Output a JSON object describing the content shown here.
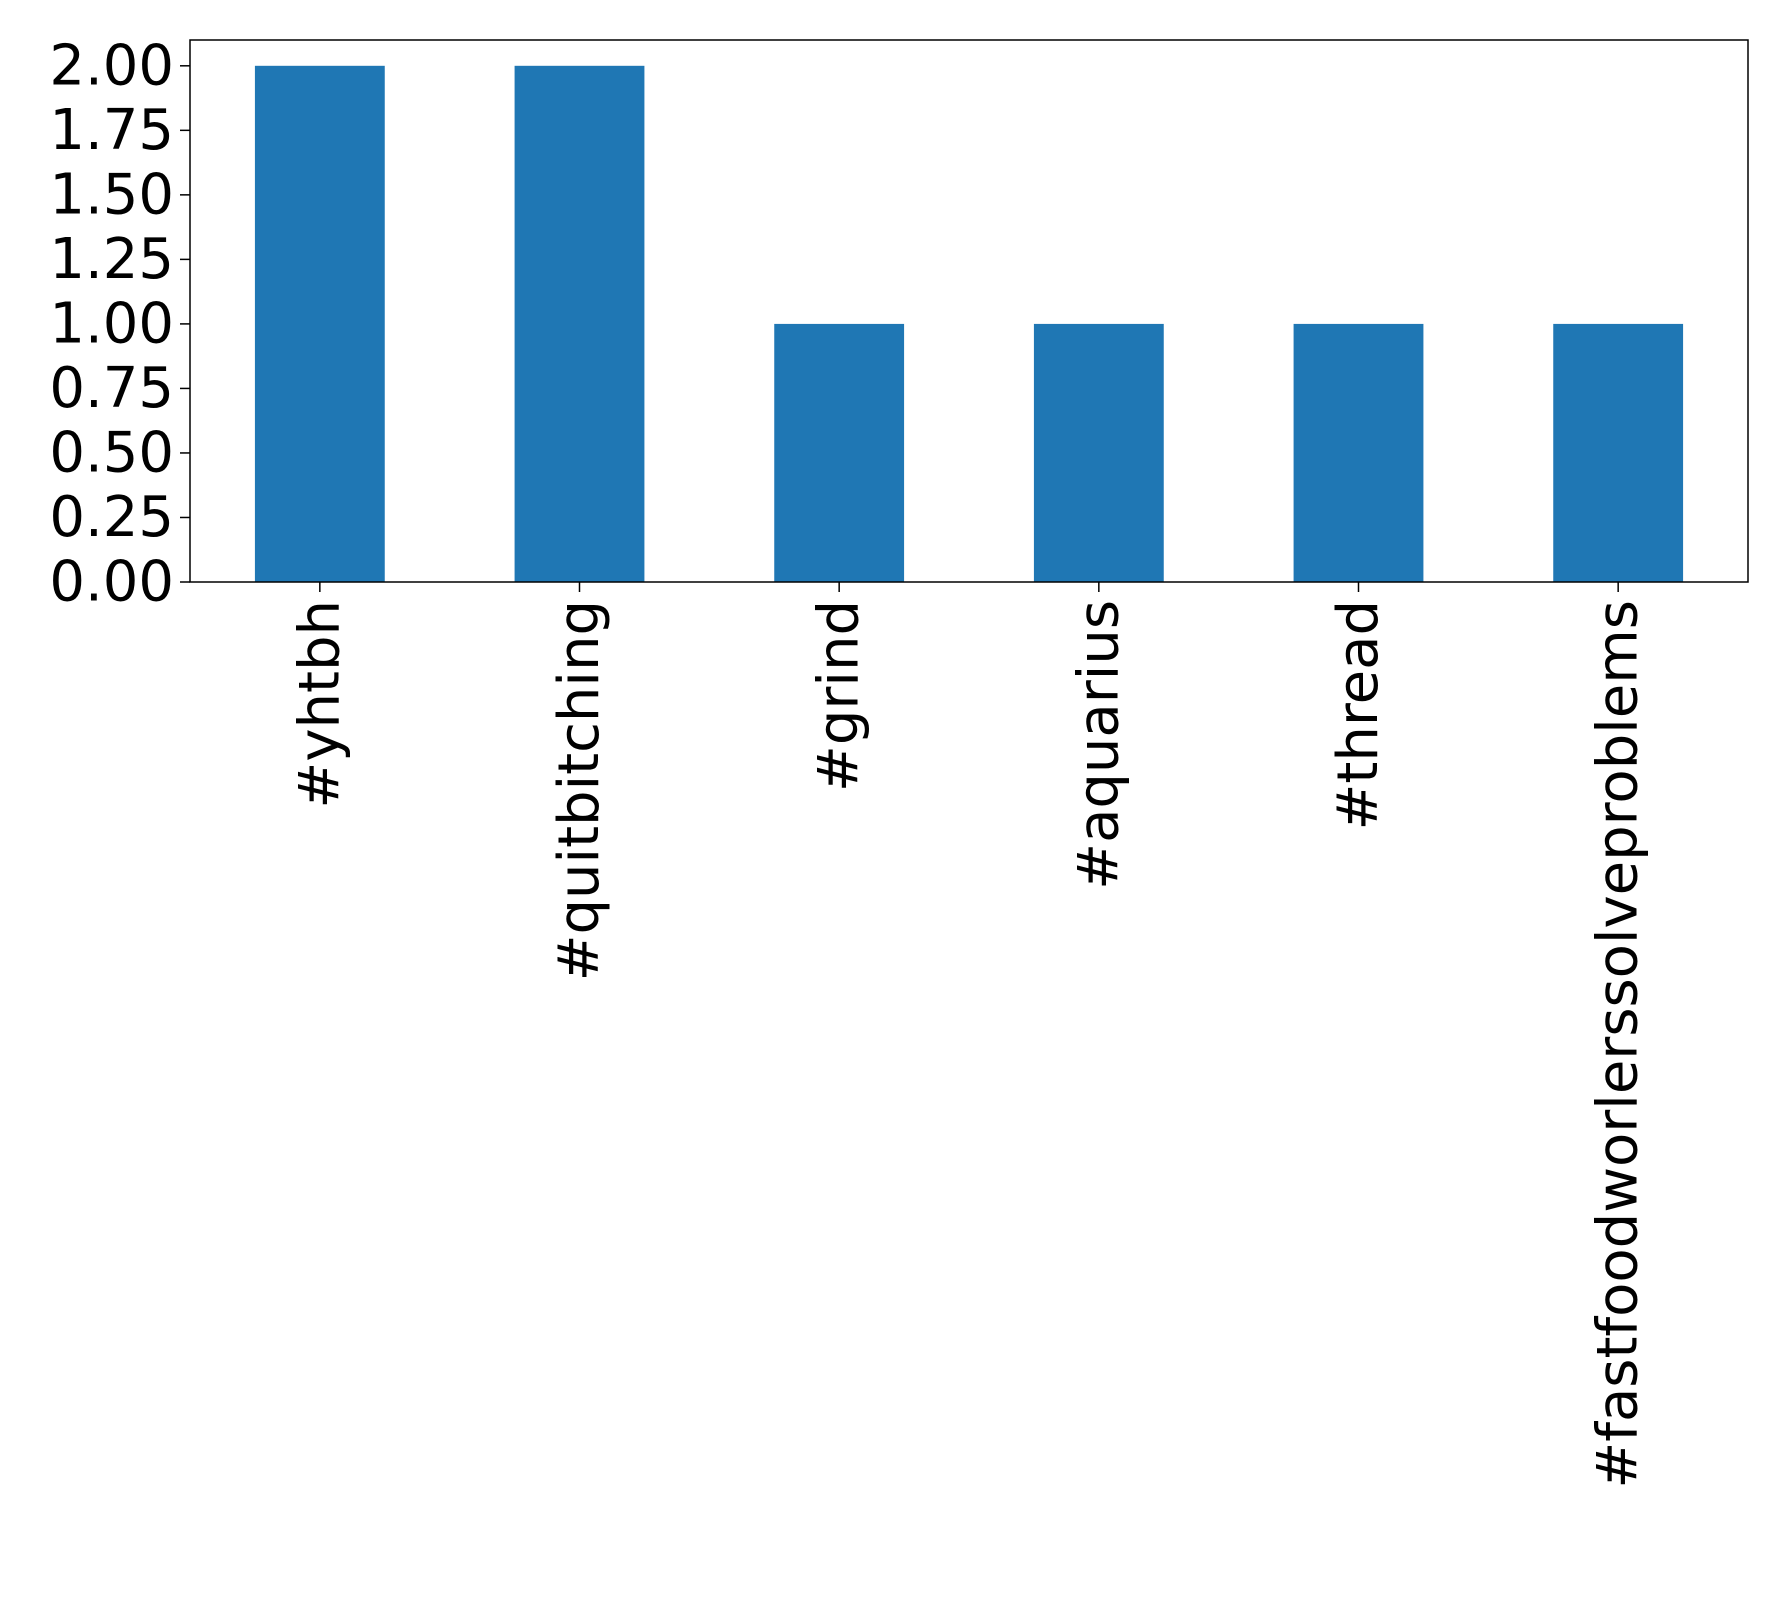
{
  "chart_data": {
    "type": "bar",
    "categories": [
      "#yhtbh",
      "#quitbitching",
      "#grind",
      "#aquarius",
      "#thread",
      "#fastfoodworlerssolveproblems"
    ],
    "values": [
      2,
      2,
      1,
      1,
      1,
      1
    ],
    "ylim": [
      0,
      2.1
    ],
    "yticks": [
      "0.00",
      "0.25",
      "0.50",
      "0.75",
      "1.00",
      "1.25",
      "1.50",
      "1.75",
      "2.00"
    ],
    "ytick_values": [
      0,
      0.25,
      0.5,
      0.75,
      1.0,
      1.25,
      1.5,
      1.75,
      2.0
    ],
    "xtick_rotation": "vertical",
    "grid": false,
    "bar_color": "#1f77b4"
  }
}
